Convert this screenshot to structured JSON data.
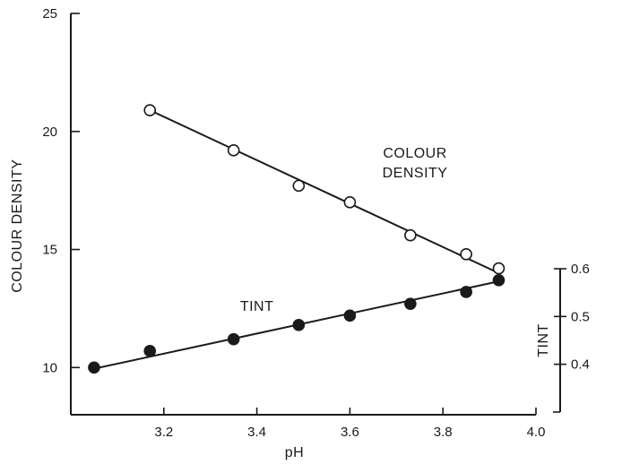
{
  "chart_data": {
    "type": "scatter",
    "title": "",
    "xlabel": "pH",
    "ylabel": "COLOUR DENSITY",
    "y2label": "TINT",
    "xlim": [
      3.0,
      4.0
    ],
    "ylim": [
      8,
      25
    ],
    "y2lim": [
      0.3,
      0.6
    ],
    "x_ticks": [
      3.2,
      3.4,
      3.6,
      3.8,
      4.0
    ],
    "x_tick_labels": [
      "3.2",
      "3.4",
      "3.6",
      "3.8",
      "4.0"
    ],
    "y_ticks": [
      10,
      15,
      20,
      25
    ],
    "y_tick_labels": [
      "10",
      "15",
      "20",
      "25"
    ],
    "y2_ticks": [
      0.4,
      0.5,
      0.6
    ],
    "y2_tick_labels": [
      "0.4",
      "0.5",
      "0.6"
    ],
    "grid": false,
    "series": [
      {
        "name": "COLOUR DENSITY",
        "label_lines": [
          "COLOUR",
          "DENSITY"
        ],
        "axis": "left",
        "marker": "open-circle",
        "x": [
          3.17,
          3.35,
          3.49,
          3.6,
          3.73,
          3.85,
          3.92
        ],
        "y": [
          20.9,
          19.2,
          17.7,
          17.0,
          15.6,
          14.8,
          14.2
        ],
        "fit": {
          "x": [
            3.17,
            3.92
          ],
          "y": [
            20.9,
            14.0
          ]
        }
      },
      {
        "name": "TINT",
        "label_lines": [
          "TINT"
        ],
        "axis": "left",
        "marker": "filled-circle",
        "x": [
          3.05,
          3.17,
          3.35,
          3.49,
          3.6,
          3.73,
          3.85,
          3.92
        ],
        "y": [
          10.0,
          10.7,
          11.2,
          11.8,
          12.2,
          12.7,
          13.2,
          13.7
        ],
        "fit": {
          "x": [
            3.05,
            3.92
          ],
          "y": [
            9.95,
            13.65
          ]
        }
      }
    ]
  }
}
